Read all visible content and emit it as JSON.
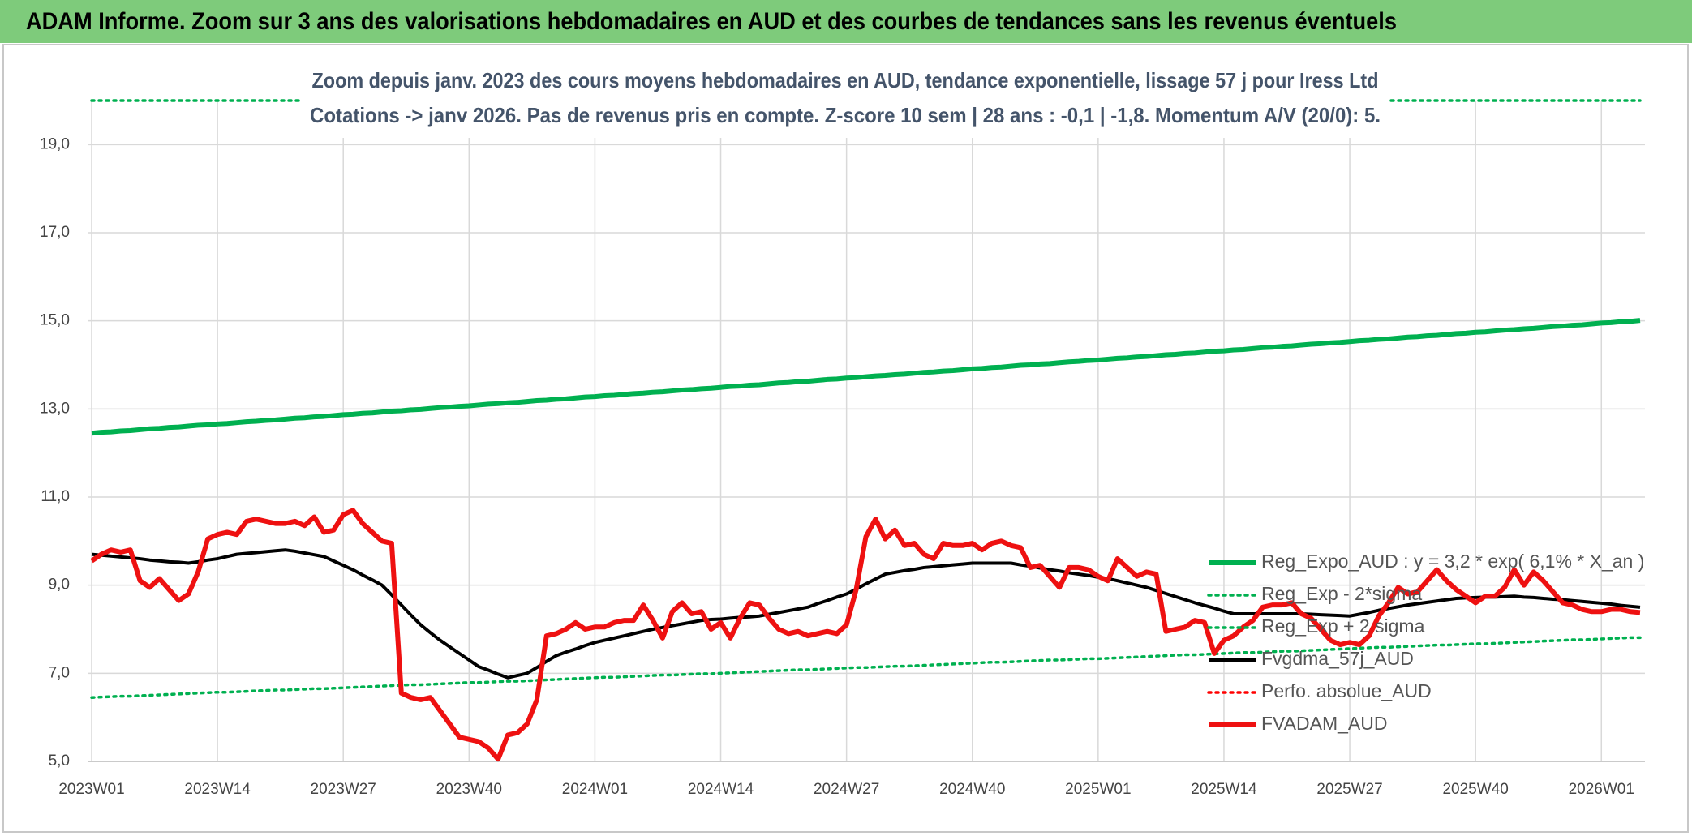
{
  "header": {
    "title": "ADAM Informe. Zoom sur 3 ans des valorisations hebdomadaires en AUD et des courbes de tendances sans les revenus éventuels"
  },
  "chart_data": {
    "type": "line",
    "title": "Zoom depuis janv. 2023 des cours moyens hebdomadaires en AUD, tendance exponentielle, lissage 57 j pour Iress Ltd",
    "subtitle": "Cotations -> janv 2026. Pas de revenus pris en compte. Z-score 10 sem | 28 ans : -0,1 | -1,8. Momentum A/V (20/0): 5.",
    "categories": [
      "2023W01",
      null,
      null,
      null,
      null,
      null,
      null,
      null,
      null,
      null,
      null,
      null,
      null,
      "2023W14",
      null,
      null,
      null,
      null,
      null,
      null,
      null,
      null,
      null,
      null,
      null,
      null,
      "2023W27",
      null,
      null,
      null,
      null,
      null,
      null,
      null,
      null,
      null,
      null,
      null,
      null,
      "2023W40",
      null,
      null,
      null,
      null,
      null,
      null,
      null,
      null,
      null,
      null,
      null,
      null,
      "2024W01",
      null,
      null,
      null,
      null,
      null,
      null,
      null,
      null,
      null,
      null,
      null,
      null,
      "2024W14",
      null,
      null,
      null,
      null,
      null,
      null,
      null,
      null,
      null,
      null,
      null,
      null,
      "2024W27",
      null,
      null,
      null,
      null,
      null,
      null,
      null,
      null,
      null,
      null,
      null,
      null,
      "2024W40",
      null,
      null,
      null,
      null,
      null,
      null,
      null,
      null,
      null,
      null,
      null,
      null,
      "2025W01",
      null,
      null,
      null,
      null,
      null,
      null,
      null,
      null,
      null,
      null,
      null,
      null,
      "2025W14",
      null,
      null,
      null,
      null,
      null,
      null,
      null,
      null,
      null,
      null,
      null,
      null,
      "2025W27",
      null,
      null,
      null,
      null,
      null,
      null,
      null,
      null,
      null,
      null,
      null,
      null,
      "2025W40",
      null,
      null,
      null,
      null,
      null,
      null,
      null,
      null,
      null,
      null,
      null,
      null,
      "2026W01",
      null,
      null,
      null,
      null
    ],
    "ylim": [
      5,
      20
    ],
    "yticks": [
      {
        "value": 5,
        "label": "5,0"
      },
      {
        "value": 7,
        "label": "7,0"
      },
      {
        "value": 9,
        "label": "9,0"
      },
      {
        "value": 11,
        "label": "11,0"
      },
      {
        "value": 13,
        "label": "13,0"
      },
      {
        "value": 15,
        "label": "15,0"
      },
      {
        "value": 17,
        "label": "17,0"
      },
      {
        "value": 19,
        "label": "19,0"
      }
    ],
    "grid": true,
    "legend": "right",
    "series": [
      {
        "name": "Reg_Expo_AUD : y = 3,2 * exp( 6,1% *  X_an )",
        "color": "#00b050",
        "line_style": "thick",
        "values": [
          12.45,
          12.47,
          12.48,
          12.5,
          12.51,
          12.53,
          12.55,
          12.56,
          12.58,
          12.59,
          12.61,
          12.63,
          12.64,
          12.66,
          12.67,
          12.69,
          12.71,
          12.72,
          12.74,
          12.75,
          12.77,
          12.79,
          12.8,
          12.82,
          12.83,
          12.85,
          12.87,
          12.88,
          12.9,
          12.91,
          12.93,
          12.95,
          12.96,
          12.98,
          12.99,
          13.01,
          13.03,
          13.04,
          13.06,
          13.07,
          13.09,
          13.11,
          13.12,
          13.14,
          13.15,
          13.17,
          13.19,
          13.2,
          13.22,
          13.23,
          13.25,
          13.27,
          13.28,
          13.3,
          13.31,
          13.33,
          13.35,
          13.36,
          13.38,
          13.39,
          13.41,
          13.43,
          13.44,
          13.46,
          13.47,
          13.49,
          13.51,
          13.52,
          13.54,
          13.55,
          13.57,
          13.59,
          13.6,
          13.62,
          13.63,
          13.65,
          13.67,
          13.68,
          13.7,
          13.71,
          13.73,
          13.75,
          13.76,
          13.78,
          13.79,
          13.81,
          13.83,
          13.84,
          13.86,
          13.87,
          13.89,
          13.91,
          13.92,
          13.94,
          13.95,
          13.97,
          13.99,
          14.0,
          14.02,
          14.03,
          14.05,
          14.07,
          14.08,
          14.1,
          14.11,
          14.13,
          14.15,
          14.16,
          14.18,
          14.19,
          14.21,
          14.23,
          14.24,
          14.26,
          14.27,
          14.29,
          14.31,
          14.32,
          14.34,
          14.35,
          14.37,
          14.39,
          14.4,
          14.42,
          14.43,
          14.45,
          14.47,
          14.48,
          14.5,
          14.51,
          14.53,
          14.55,
          14.56,
          14.58,
          14.59,
          14.61,
          14.63,
          14.64,
          14.66,
          14.67,
          14.69,
          14.71,
          14.72,
          14.74,
          14.75,
          14.77,
          14.79,
          14.8,
          14.82,
          14.83,
          14.85,
          14.87,
          14.88,
          14.9,
          14.91,
          14.93,
          14.95,
          14.96,
          14.98,
          14.99,
          15.01
        ]
      },
      {
        "name": "Reg_Exp - 2*sigma",
        "color": "#00b050",
        "line_style": "dotted",
        "values": [
          6.45,
          6.46,
          6.47,
          6.48,
          6.48,
          6.49,
          6.5,
          6.51,
          6.52,
          6.53,
          6.54,
          6.55,
          6.56,
          6.57,
          6.57,
          6.58,
          6.59,
          6.6,
          6.61,
          6.62,
          6.62,
          6.63,
          6.64,
          6.65,
          6.65,
          6.66,
          6.67,
          6.68,
          6.69,
          6.7,
          6.71,
          6.72,
          6.73,
          6.74,
          6.74,
          6.75,
          6.76,
          6.77,
          6.78,
          6.79,
          6.79,
          6.8,
          6.81,
          6.82,
          6.82,
          6.83,
          6.84,
          6.85,
          6.86,
          6.87,
          6.88,
          6.89,
          6.9,
          6.91,
          6.91,
          6.92,
          6.93,
          6.94,
          6.95,
          6.96,
          6.96,
          6.97,
          6.98,
          6.99,
          6.99,
          7.0,
          7.01,
          7.02,
          7.03,
          7.04,
          7.05,
          7.06,
          7.07,
          7.08,
          7.08,
          7.09,
          7.1,
          7.11,
          7.12,
          7.13,
          7.13,
          7.14,
          7.15,
          7.16,
          7.16,
          7.17,
          7.18,
          7.19,
          7.2,
          7.21,
          7.22,
          7.23,
          7.24,
          7.25,
          7.25,
          7.26,
          7.27,
          7.28,
          7.29,
          7.3,
          7.3,
          7.31,
          7.32,
          7.33,
          7.33,
          7.34,
          7.35,
          7.36,
          7.37,
          7.38,
          7.39,
          7.4,
          7.41,
          7.42,
          7.42,
          7.43,
          7.44,
          7.45,
          7.46,
          7.47,
          7.47,
          7.48,
          7.49,
          7.5,
          7.5,
          7.51,
          7.52,
          7.53,
          7.54,
          7.55,
          7.56,
          7.57,
          7.58,
          7.59,
          7.59,
          7.6,
          7.61,
          7.62,
          7.63,
          7.64,
          7.64,
          7.65,
          7.66,
          7.67,
          7.67,
          7.68,
          7.69,
          7.7,
          7.71,
          7.72,
          7.73,
          7.74,
          7.75,
          7.76,
          7.76,
          7.77,
          7.78,
          7.79,
          7.8,
          7.81,
          7.81
        ]
      },
      {
        "name": "Reg_Exp + 2 sigma",
        "color": "#00b050",
        "line_style": "dotted",
        "values": [
          20,
          20,
          20,
          20,
          20,
          20,
          20,
          20,
          20,
          20,
          20,
          20,
          20,
          20,
          20,
          20,
          20,
          20,
          20,
          20,
          20,
          20,
          20,
          20,
          20,
          20,
          20,
          20,
          20,
          20,
          20,
          20,
          20,
          20,
          20,
          20,
          20,
          20,
          20,
          20,
          20,
          20,
          20,
          20,
          20,
          20,
          20,
          20,
          20,
          20,
          20,
          20,
          20,
          20,
          20,
          20,
          20,
          20,
          20,
          20,
          20,
          20,
          20,
          20,
          20,
          20,
          20,
          20,
          20,
          20,
          20,
          20,
          20,
          20,
          20,
          20,
          20,
          20,
          20,
          20,
          20,
          20,
          20,
          20,
          20,
          20,
          20,
          20,
          20,
          20,
          20,
          20,
          20,
          20,
          20,
          20,
          20,
          20,
          20,
          20,
          20,
          20,
          20,
          20,
          20,
          20,
          20,
          20,
          20,
          20,
          20,
          20,
          20,
          20,
          20,
          20,
          20,
          20,
          20,
          20,
          20,
          20,
          20,
          20,
          20,
          20,
          20,
          20,
          20,
          20,
          20,
          20,
          20,
          20,
          20,
          20,
          20,
          20,
          20,
          20,
          20,
          20,
          20,
          20,
          20,
          20,
          20,
          20,
          20,
          20,
          20,
          20,
          20,
          20,
          20,
          20,
          20,
          20,
          20,
          20,
          20
        ]
      },
      {
        "name": "Fvgdma_57j_AUD",
        "color": "#000000",
        "line_style": "solid",
        "values": [
          9.7,
          9.68,
          9.66,
          9.64,
          9.62,
          9.6,
          9.57,
          9.55,
          9.53,
          9.52,
          9.5,
          9.53,
          9.57,
          9.6,
          9.65,
          9.7,
          9.72,
          9.74,
          9.76,
          9.78,
          9.8,
          9.77,
          9.73,
          9.69,
          9.65,
          9.55,
          9.45,
          9.35,
          9.23,
          9.12,
          9.0,
          8.78,
          8.55,
          8.32,
          8.1,
          7.92,
          7.75,
          7.6,
          7.45,
          7.3,
          7.15,
          7.07,
          6.98,
          6.9,
          6.95,
          7.0,
          7.13,
          7.27,
          7.4,
          7.48,
          7.55,
          7.63,
          7.7,
          7.75,
          7.8,
          7.85,
          7.9,
          7.95,
          8.0,
          8.04,
          8.08,
          8.12,
          8.16,
          8.2,
          8.22,
          8.23,
          8.25,
          8.27,
          8.28,
          8.3,
          8.34,
          8.38,
          8.42,
          8.46,
          8.5,
          8.58,
          8.65,
          8.73,
          8.8,
          8.91,
          9.03,
          9.14,
          9.25,
          9.29,
          9.33,
          9.36,
          9.4,
          9.42,
          9.44,
          9.46,
          9.48,
          9.5,
          9.5,
          9.5,
          9.5,
          9.5,
          9.46,
          9.43,
          9.39,
          9.35,
          9.32,
          9.28,
          9.25,
          9.22,
          9.18,
          9.15,
          9.1,
          9.05,
          9.0,
          8.95,
          8.88,
          8.81,
          8.74,
          8.67,
          8.6,
          8.54,
          8.48,
          8.41,
          8.35,
          8.35,
          8.35,
          8.35,
          8.35,
          8.35,
          8.35,
          8.35,
          8.34,
          8.33,
          8.32,
          8.31,
          8.3,
          8.34,
          8.38,
          8.43,
          8.47,
          8.51,
          8.55,
          8.58,
          8.61,
          8.64,
          8.67,
          8.7,
          8.71,
          8.72,
          8.73,
          8.73,
          8.74,
          8.75,
          8.73,
          8.72,
          8.7,
          8.68,
          8.67,
          8.65,
          8.63,
          8.61,
          8.59,
          8.57,
          8.54,
          8.52,
          8.5
        ]
      },
      {
        "name": "Perfo. absolue_AUD",
        "color": "#ff0000",
        "line_style": "dotted",
        "values": [
          null,
          null,
          null,
          null,
          null,
          null,
          null,
          null,
          null,
          null,
          null,
          null,
          null,
          null,
          null,
          null,
          null,
          null,
          null,
          null,
          null,
          null,
          null,
          null,
          null,
          null,
          null,
          null,
          null,
          null,
          null,
          null,
          null,
          null,
          null,
          null,
          null,
          null,
          null,
          null,
          null,
          null,
          null,
          null,
          null,
          null,
          null,
          null,
          null,
          null,
          null,
          null,
          null,
          null,
          null,
          null,
          null,
          null,
          null,
          null,
          null,
          null,
          null,
          null,
          null,
          null,
          null,
          null,
          null,
          null,
          null,
          null,
          null,
          null,
          null,
          null,
          null,
          null,
          null,
          null,
          null,
          null,
          null,
          null,
          null,
          null,
          null,
          null,
          null,
          null,
          null,
          null,
          null,
          null,
          null,
          null,
          null,
          null,
          null,
          null,
          null,
          null,
          null,
          null,
          null,
          null,
          null,
          null,
          null,
          null,
          null,
          null,
          null,
          null,
          null,
          null,
          null,
          null,
          null,
          null,
          null,
          null,
          null,
          null,
          null,
          null,
          null,
          null,
          null,
          null,
          null,
          null,
          null,
          null,
          null,
          null,
          null,
          null,
          null,
          null,
          null,
          null,
          null,
          null,
          null,
          null,
          null,
          null,
          null,
          null,
          null,
          null,
          null,
          null,
          null,
          null,
          null,
          null,
          null,
          null,
          null
        ]
      },
      {
        "name": "FVADAM_AUD",
        "color": "#ee1111",
        "line_style": "thick",
        "values": [
          9.55,
          9.7,
          9.8,
          9.75,
          9.8,
          9.1,
          8.95,
          9.15,
          8.9,
          8.65,
          8.8,
          9.3,
          10.05,
          10.15,
          10.2,
          10.15,
          10.45,
          10.5,
          10.45,
          10.4,
          10.4,
          10.45,
          10.35,
          10.55,
          10.2,
          10.25,
          10.6,
          10.7,
          10.4,
          10.2,
          10.0,
          9.95,
          6.55,
          6.45,
          6.4,
          6.45,
          6.15,
          5.85,
          5.55,
          5.5,
          5.45,
          5.3,
          5.05,
          5.6,
          5.65,
          5.85,
          6.4,
          7.85,
          7.9,
          8.0,
          8.15,
          8.0,
          8.05,
          8.05,
          8.15,
          8.2,
          8.2,
          8.55,
          8.2,
          7.8,
          8.4,
          8.6,
          8.35,
          8.4,
          8.0,
          8.15,
          7.8,
          8.25,
          8.6,
          8.55,
          8.25,
          8.0,
          7.9,
          7.95,
          7.85,
          7.9,
          7.95,
          7.9,
          8.1,
          8.9,
          10.1,
          10.5,
          10.05,
          10.25,
          9.9,
          9.95,
          9.7,
          9.6,
          9.95,
          9.9,
          9.9,
          9.95,
          9.8,
          9.95,
          10.0,
          9.9,
          9.85,
          9.4,
          9.45,
          9.2,
          8.95,
          9.4,
          9.4,
          9.35,
          9.2,
          9.1,
          9.6,
          9.4,
          9.2,
          9.3,
          9.25,
          7.95,
          8.0,
          8.05,
          8.2,
          8.15,
          7.45,
          7.75,
          7.85,
          8.05,
          8.2,
          8.5,
          8.55,
          8.55,
          8.6,
          8.35,
          8.25,
          8.0,
          7.75,
          7.65,
          7.7,
          7.65,
          7.85,
          8.3,
          8.6,
          8.95,
          8.8,
          8.85,
          9.1,
          9.35,
          9.1,
          8.9,
          8.75,
          8.6,
          8.75,
          8.75,
          8.95,
          9.35,
          9.0,
          9.3,
          9.1,
          8.85,
          8.6,
          8.55,
          8.45,
          8.4,
          8.4,
          8.45,
          8.45,
          8.4,
          8.38
        ]
      }
    ]
  }
}
